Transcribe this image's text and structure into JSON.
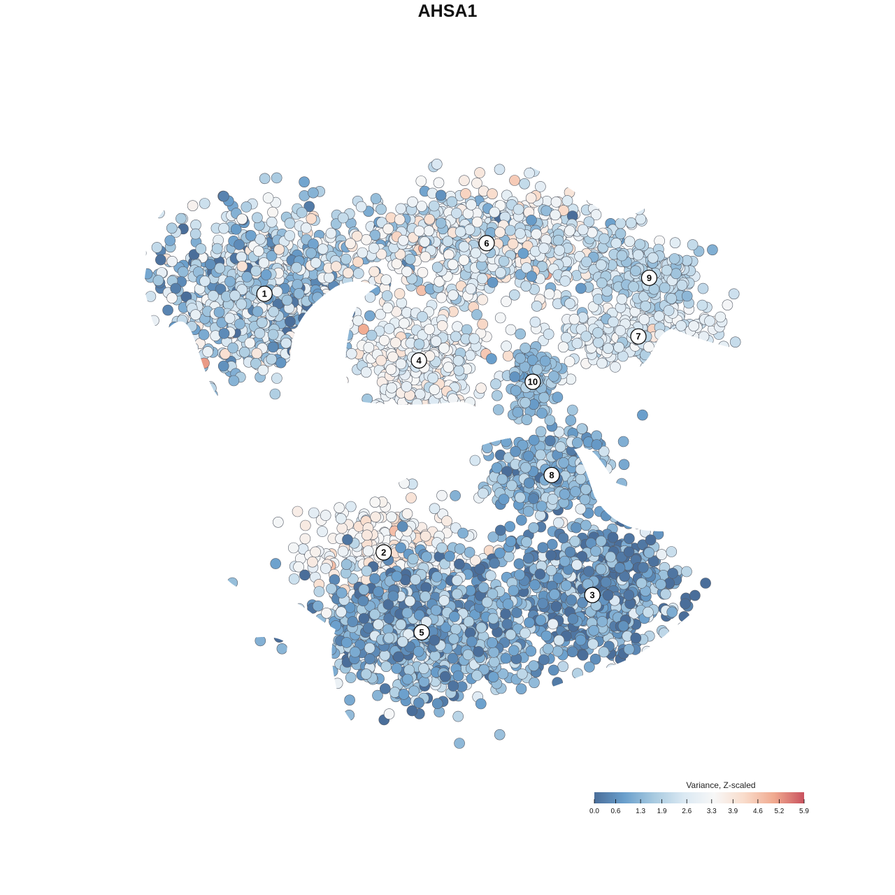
{
  "title": "AHSA1",
  "chart_data": {
    "type": "scatter",
    "title": "AHSA1",
    "xlabel": "",
    "ylabel": "",
    "grid": false,
    "legend": {
      "title": "Variance, Z-scaled",
      "placement": "bottom-right",
      "ticks": [
        "0.0",
        "0.6",
        "1.3",
        "1.9",
        "2.6",
        "3.3",
        "3.9",
        "4.6",
        "5.2",
        "5.9"
      ],
      "range": [
        0.0,
        5.9
      ],
      "colors": [
        "#4a6e9a",
        "#6a9fcc",
        "#a8cae0",
        "#dbe9f3",
        "#f7f7f7",
        "#f9dccb",
        "#f0a98f",
        "#c9525e"
      ]
    },
    "clusters": [
      {
        "label": "1",
        "x": -7.4,
        "y": 5.7,
        "mean": 2.0,
        "spread": 1.7,
        "points": 900
      },
      {
        "label": "2",
        "x": -3.0,
        "y": -4.0,
        "mean": 3.4,
        "spread": 1.0,
        "points": 260
      },
      {
        "label": "3",
        "x": 4.7,
        "y": -5.6,
        "mean": 0.9,
        "spread": 1.7,
        "points": 720
      },
      {
        "label": "4",
        "x": -1.7,
        "y": 3.2,
        "mean": 3.0,
        "spread": 1.0,
        "points": 340
      },
      {
        "label": "5",
        "x": -1.6,
        "y": -7.0,
        "mean": 1.2,
        "spread": 1.5,
        "points": 900
      },
      {
        "label": "6",
        "x": 0.8,
        "y": 7.6,
        "mean": 2.6,
        "spread": 1.7,
        "points": 760
      },
      {
        "label": "7",
        "x": 6.4,
        "y": 4.1,
        "mean": 2.7,
        "spread": 0.8,
        "points": 260
      },
      {
        "label": "8",
        "x": 3.2,
        "y": -1.1,
        "mean": 1.3,
        "spread": 1.0,
        "points": 300
      },
      {
        "label": "9",
        "x": 6.8,
        "y": 6.3,
        "mean": 2.0,
        "spread": 0.6,
        "points": 180
      },
      {
        "label": "10",
        "x": 2.5,
        "y": 2.4,
        "mean": 1.5,
        "spread": 0.7,
        "points": 140
      }
    ],
    "xlim": [
      -12,
      12
    ],
    "ylim": [
      -12,
      12
    ]
  }
}
